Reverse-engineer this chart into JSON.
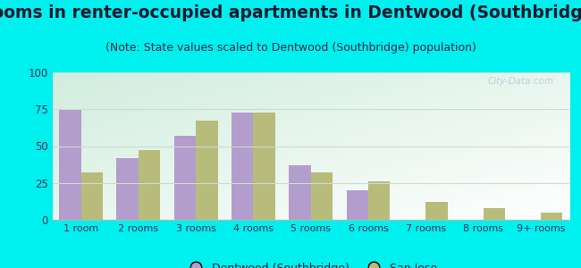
{
  "title": "Rooms in renter-occupied apartments in Dentwood (Southbridge)",
  "subtitle": "(Note: State values scaled to Dentwood (Southbridge) population)",
  "categories": [
    "1 room",
    "2 rooms",
    "3 rooms",
    "4 rooms",
    "5 rooms",
    "6 rooms",
    "7 rooms",
    "8 rooms",
    "9+ rooms"
  ],
  "dentwood_values": [
    75,
    42,
    57,
    73,
    37,
    20,
    0,
    0,
    0
  ],
  "sanjose_values": [
    32,
    47,
    67,
    73,
    32,
    26,
    12,
    8,
    5
  ],
  "dentwood_color": "#b39dcc",
  "sanjose_color": "#b8bc7a",
  "background_color": "#00efef",
  "ylim": [
    0,
    100
  ],
  "yticks": [
    0,
    25,
    50,
    75,
    100
  ],
  "title_fontsize": 13.5,
  "subtitle_fontsize": 9,
  "legend_label_dentwood": "Dentwood (Southbridge)",
  "legend_label_sanjose": "San Jose",
  "watermark": "City-Data.com",
  "title_color": "#1a1a2e",
  "subtitle_color": "#2a2a4a",
  "tick_color": "#333355",
  "grid_color": "#ccddcc"
}
